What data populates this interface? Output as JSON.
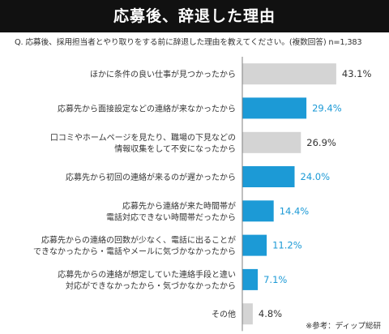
{
  "header": {
    "title": "応募後、辞退した理由",
    "question": "Q. 応募後、採用担当者とやり取りをする前に辞退した理由を教えてください。(複数回答) n=1,383"
  },
  "source": "※参考：ディップ総研",
  "colors": {
    "highlight": "#1c9ad6",
    "neutral": "#d4d4d4",
    "highlight_text": "#1c9ad6",
    "neutral_text": "#333333",
    "axis": "#7f7f7f"
  },
  "chart_data": {
    "type": "bar",
    "orientation": "horizontal",
    "title": "応募後、辞退した理由",
    "xlabel": "",
    "ylabel": "",
    "xlim": [
      0,
      45
    ],
    "grid": false,
    "legend": "none",
    "categories": [
      [
        "ほかに条件の良い仕事が見つかったから"
      ],
      [
        "応募先から面接設定などの連絡が来なかったから"
      ],
      [
        "口コミやホームページを見たり、職場の下見などの",
        "情報収集をして不安になったから"
      ],
      [
        "応募先から初回の連絡が来るのが遅かったから"
      ],
      [
        "応募先から連絡が来た時間帯が",
        "電話対応できない時間帯だったから"
      ],
      [
        "応募先からの連絡の回数が少なく、電話に出ることが",
        "できなかったから・電話やメールに気づかなかったから"
      ],
      [
        "応募先からの連絡が想定していた連絡手段と違い",
        "対応ができなかったから・気づかなかったから"
      ],
      [
        "その他"
      ]
    ],
    "values": [
      43.1,
      29.4,
      26.9,
      24.0,
      14.4,
      11.2,
      7.1,
      4.8
    ],
    "value_labels": [
      "43.1%",
      "29.4%",
      "26.9%",
      "24.0%",
      "14.4%",
      "11.2%",
      "7.1%",
      "4.8%"
    ],
    "highlighted": [
      false,
      true,
      false,
      true,
      true,
      true,
      true,
      false
    ]
  }
}
